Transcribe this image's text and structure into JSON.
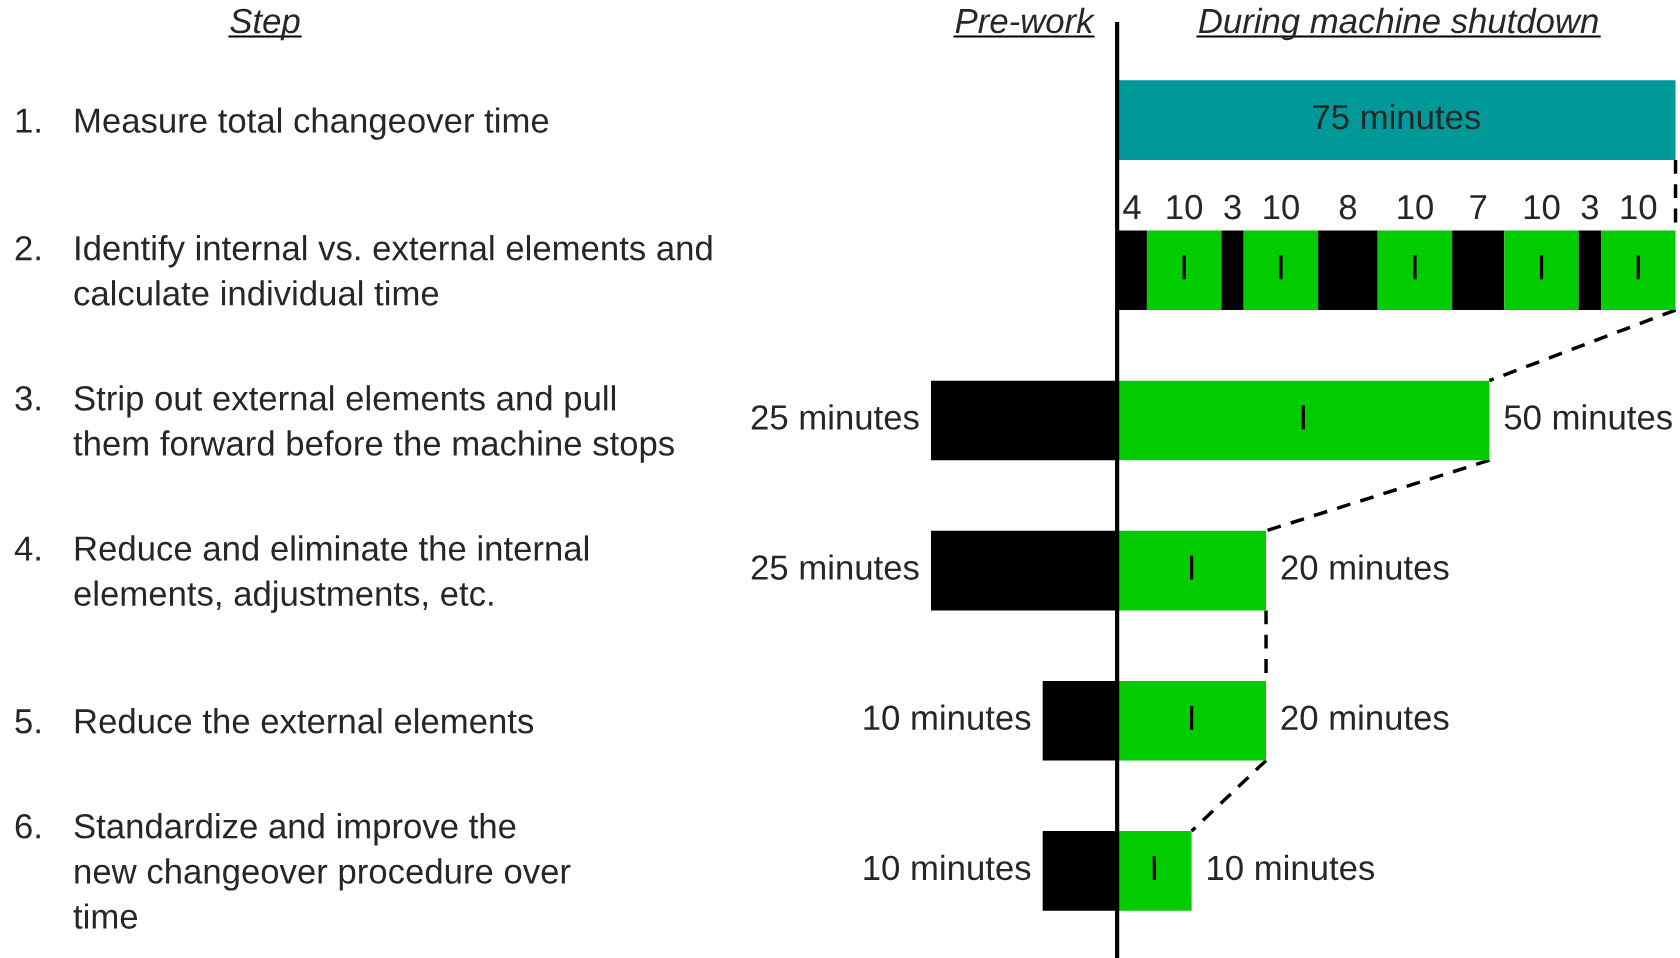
{
  "chart_data": [
    {
      "type": "bar",
      "orientation": "horizontal",
      "tick_labels": "y",
      "title": "Pre-work",
      "annotations": [
        "Step"
      ],
      "categories": [
        "1. Measure total changeover time",
        "2. Identify internal vs. external elements and\ncalculate individual time",
        "3. Strip out external elements and pull\nthem forward before the machine stops",
        "4. Reduce and eliminate the internal\nelements, adjustments, etc.",
        "5. Reduce the external elements",
        "6. Standardize and improve the\nnew changeover procedure over\ntime"
      ],
      "xlim": [
        25,
        0
      ],
      "series": [
        {
          "color": "#000000",
          "values": [
            null,
            null,
            25,
            25,
            10,
            10
          ],
          "value_labels": [
            null,
            null,
            "25 minutes",
            "25 minutes",
            "10 minutes",
            "10 minutes"
          ]
        }
      ]
    },
    {
      "type": "bar",
      "orientation": "horizontal",
      "stacked": true,
      "tick_labels": false,
      "title": "During machine shutdown",
      "categories": [
        null,
        null,
        null,
        null,
        null,
        null
      ],
      "series": [
        {
          "color": "#009999",
          "values": [
            75,
            null,
            null,
            null,
            null,
            null
          ],
          "value_labels": [
            "75 minutes",
            null,
            null,
            null,
            null,
            null
          ]
        },
        {
          "name": "I",
          "color": "#00cc00",
          "values": [
            null,
            null,
            50,
            20,
            20,
            10
          ],
          "value_labels": [
            null,
            null,
            "50 minutes",
            "20 minutes",
            "20 minutes",
            "10 minutes"
          ]
        },
        {
          "color": "#000000",
          "values": [
            null,
            4,
            null,
            null,
            null,
            null
          ],
          "value_labels": [
            null,
            "4",
            null,
            null,
            null,
            null
          ]
        },
        {
          "name": "I",
          "color": "#00cc00",
          "values": [
            null,
            10,
            null,
            null,
            null,
            null
          ],
          "value_labels": [
            null,
            "10",
            null,
            null,
            null,
            null
          ]
        },
        {
          "color": "#000000",
          "values": [
            null,
            3,
            null,
            null,
            null,
            null
          ],
          "value_labels": [
            null,
            "3",
            null,
            null,
            null,
            null
          ]
        },
        {
          "name": "I",
          "color": "#00cc00",
          "values": [
            null,
            10,
            null,
            null,
            null,
            null
          ],
          "value_labels": [
            null,
            "10",
            null,
            null,
            null,
            null
          ]
        },
        {
          "color": "#000000",
          "values": [
            null,
            8,
            null,
            null,
            null,
            null
          ],
          "value_labels": [
            null,
            "8",
            null,
            null,
            null,
            null
          ]
        },
        {
          "name": "I",
          "color": "#00cc00",
          "values": [
            null,
            10,
            null,
            null,
            null,
            null
          ],
          "value_labels": [
            null,
            "10",
            null,
            null,
            null,
            null
          ]
        },
        {
          "color": "#000000",
          "values": [
            null,
            7,
            null,
            null,
            null,
            null
          ],
          "value_labels": [
            null,
            "7",
            null,
            null,
            null,
            null
          ]
        },
        {
          "name": "I",
          "color": "#00cc00",
          "values": [
            null,
            10,
            null,
            null,
            null,
            null
          ],
          "value_labels": [
            null,
            "10",
            null,
            null,
            null,
            null
          ]
        },
        {
          "color": "#000000",
          "values": [
            null,
            3,
            null,
            null,
            null,
            null
          ],
          "value_labels": [
            null,
            "3",
            null,
            null,
            null,
            null
          ]
        },
        {
          "name": "I",
          "color": "#00cc00",
          "values": [
            null,
            10,
            null,
            null,
            null,
            null
          ],
          "value_labels": [
            null,
            "10",
            null,
            null,
            null,
            null
          ]
        }
      ]
    }
  ]
}
